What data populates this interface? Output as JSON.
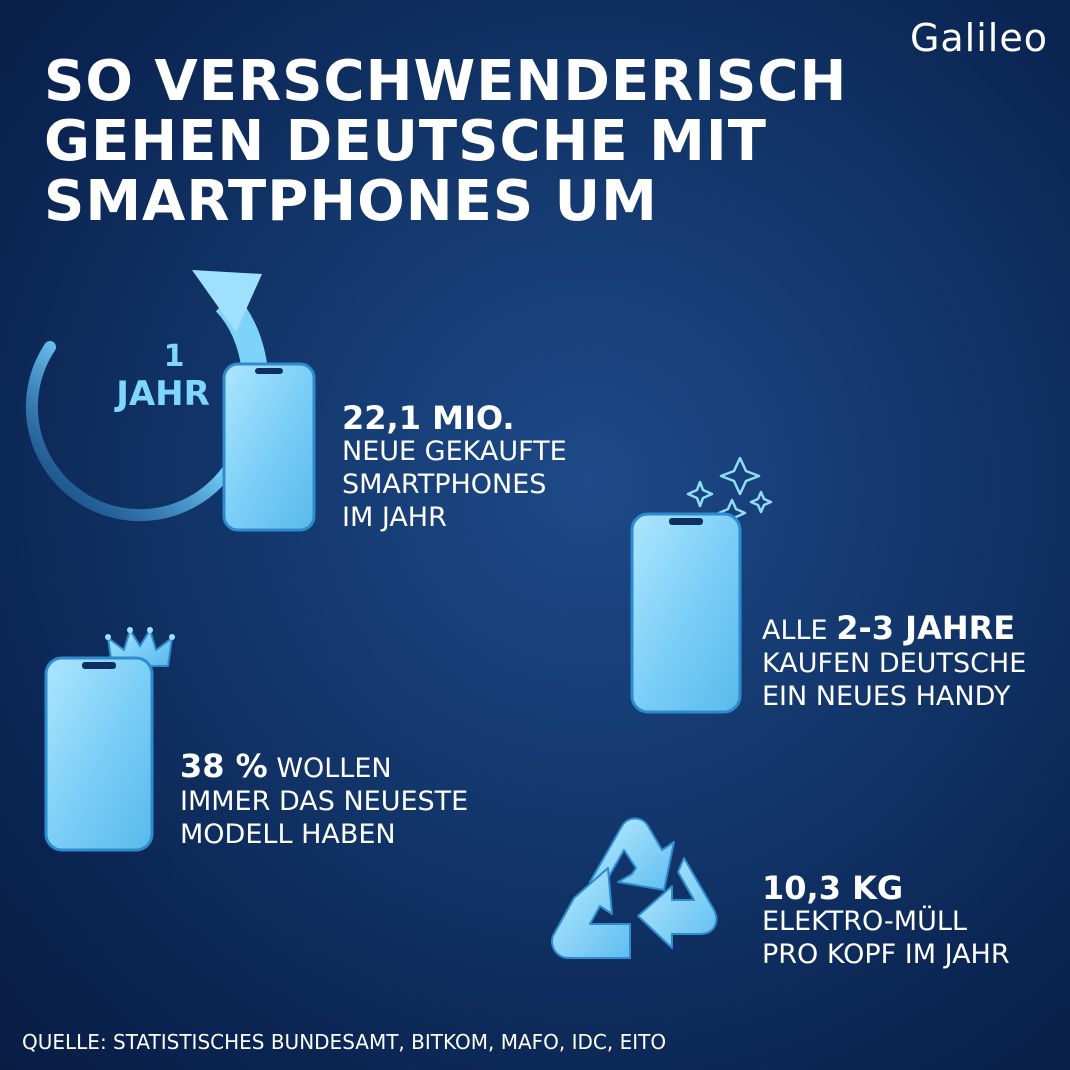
{
  "logo": "Galileo",
  "title": [
    "SO VERSCHWENDERISCH",
    "GEHEN DEUTSCHE MIT",
    "SMARTPHONES UM"
  ],
  "cycle_label": {
    "number": "1",
    "unit": "JAHR"
  },
  "stat1": {
    "value": "22,1 MIO.",
    "lines": [
      "NEUE GEKAUFTE",
      "SMARTPHONES",
      "IM JAHR"
    ]
  },
  "stat2": {
    "prefix": "ALLE ",
    "value": "2-3 JAHRE",
    "lines": [
      "KAUFEN DEUTSCHE",
      "EIN NEUES HANDY"
    ]
  },
  "stat3": {
    "value": "38 %",
    "suffix": " WOLLEN",
    "lines": [
      "IMMER DAS NEUESTE",
      "MODELL HABEN"
    ]
  },
  "stat4": {
    "value": "10,3 KG",
    "lines": [
      "ELEKTRO-MÜLL",
      "PRO KOPF IM JAHR"
    ]
  },
  "source": "QUELLE: STATISTISCHES BUNDESAMT, BITKOM, MAFO, IDC, EITO",
  "colors": {
    "accent": "#7fd6ff",
    "phone": "#8fd9ff",
    "background": "#0f2f62"
  },
  "icons": [
    "cycle-arrow-icon",
    "smartphone-icon",
    "sparkle-icon",
    "crown-icon",
    "recycle-icon"
  ]
}
